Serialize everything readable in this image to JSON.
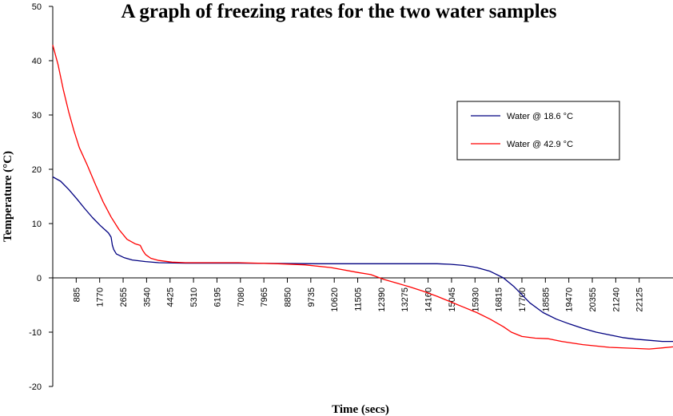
{
  "chart_data": {
    "type": "line",
    "title": "A graph of freezing rates for the two water samples",
    "xlabel": "Time (secs)",
    "ylabel": "Temperature (°C)",
    "xlim": [
      0,
      23400
    ],
    "ylim": [
      -20,
      50
    ],
    "x_ticks": [
      885,
      1770,
      2655,
      3540,
      4425,
      5310,
      6195,
      7080,
      7965,
      8850,
      9735,
      10620,
      11505,
      12390,
      13275,
      14160,
      15045,
      15930,
      16815,
      17700,
      18585,
      19470,
      20355,
      21240,
      22125
    ],
    "y_ticks": [
      -20,
      -10,
      0,
      10,
      20,
      30,
      40,
      50
    ],
    "legend_position": "top-right",
    "series": [
      {
        "name": "Water @ 18.6 °C",
        "color": "#000080",
        "points": [
          [
            0,
            18.6
          ],
          [
            300,
            17.8
          ],
          [
            600,
            16.3
          ],
          [
            900,
            14.6
          ],
          [
            1200,
            12.8
          ],
          [
            1500,
            11.1
          ],
          [
            1800,
            9.6
          ],
          [
            2100,
            8.3
          ],
          [
            2200,
            7.5
          ],
          [
            2250,
            6.0
          ],
          [
            2300,
            5.2
          ],
          [
            2400,
            4.4
          ],
          [
            2700,
            3.7
          ],
          [
            3000,
            3.3
          ],
          [
            3500,
            3.0
          ],
          [
            4000,
            2.8
          ],
          [
            5000,
            2.7
          ],
          [
            7000,
            2.7
          ],
          [
            10000,
            2.6
          ],
          [
            13000,
            2.6
          ],
          [
            14500,
            2.6
          ],
          [
            15000,
            2.5
          ],
          [
            15500,
            2.3
          ],
          [
            16000,
            1.9
          ],
          [
            16500,
            1.2
          ],
          [
            17000,
            0.0
          ],
          [
            17400,
            -1.6
          ],
          [
            17700,
            -3.1
          ],
          [
            18000,
            -4.6
          ],
          [
            18500,
            -6.4
          ],
          [
            19000,
            -7.6
          ],
          [
            19500,
            -8.5
          ],
          [
            20000,
            -9.3
          ],
          [
            20500,
            -10.0
          ],
          [
            21000,
            -10.5
          ],
          [
            21500,
            -11.0
          ],
          [
            22000,
            -11.3
          ],
          [
            22500,
            -11.5
          ],
          [
            23000,
            -11.7
          ],
          [
            23400,
            -11.7
          ]
        ]
      },
      {
        "name": "Water @ 42.9 °C",
        "color": "#ff0000",
        "points": [
          [
            0,
            42.9
          ],
          [
            200,
            39.3
          ],
          [
            400,
            34.6
          ],
          [
            600,
            30.6
          ],
          [
            800,
            27.1
          ],
          [
            1000,
            24.0
          ],
          [
            1300,
            20.8
          ],
          [
            1600,
            17.3
          ],
          [
            1900,
            14.0
          ],
          [
            2200,
            11.2
          ],
          [
            2500,
            8.9
          ],
          [
            2800,
            7.1
          ],
          [
            3100,
            6.3
          ],
          [
            3300,
            6.0
          ],
          [
            3400,
            5.0
          ],
          [
            3500,
            4.3
          ],
          [
            3700,
            3.6
          ],
          [
            4000,
            3.2
          ],
          [
            4500,
            2.9
          ],
          [
            5000,
            2.8
          ],
          [
            7000,
            2.8
          ],
          [
            8500,
            2.6
          ],
          [
            9500,
            2.4
          ],
          [
            10500,
            1.9
          ],
          [
            11500,
            1.0
          ],
          [
            12000,
            0.6
          ],
          [
            12500,
            -0.3
          ],
          [
            13000,
            -1.0
          ],
          [
            13500,
            -1.7
          ],
          [
            14000,
            -2.5
          ],
          [
            14500,
            -3.4
          ],
          [
            15000,
            -4.4
          ],
          [
            15500,
            -5.4
          ],
          [
            16000,
            -6.4
          ],
          [
            16500,
            -7.6
          ],
          [
            17000,
            -9.0
          ],
          [
            17300,
            -10.0
          ],
          [
            17700,
            -10.8
          ],
          [
            18200,
            -11.1
          ],
          [
            18700,
            -11.2
          ],
          [
            19200,
            -11.7
          ],
          [
            20000,
            -12.3
          ],
          [
            21000,
            -12.8
          ],
          [
            22000,
            -13.0
          ],
          [
            22500,
            -13.1
          ],
          [
            23000,
            -12.9
          ],
          [
            23400,
            -12.7
          ]
        ]
      }
    ]
  }
}
